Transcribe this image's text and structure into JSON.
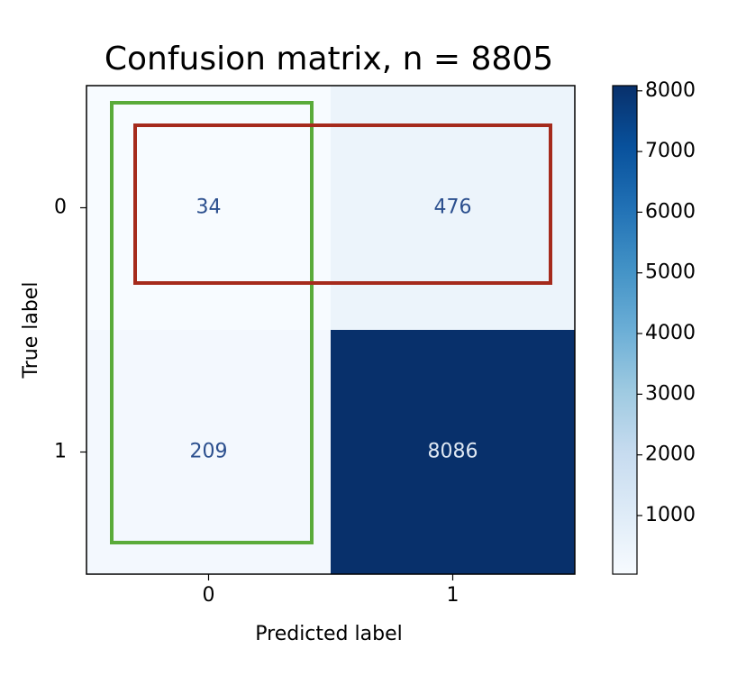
{
  "chart_data": {
    "type": "heatmap",
    "title": "Confusion matrix, n = 8805",
    "x_label": "Predicted label",
    "y_label": "True label",
    "categories": [
      "0",
      "1"
    ],
    "y_categories": [
      "0",
      "1"
    ],
    "values": [
      [
        34,
        476
      ],
      [
        209,
        8086
      ]
    ],
    "colormap": [
      "#f7fbff",
      "#deebf7",
      "#c6dbef",
      "#9ecae1",
      "#6baed6",
      "#4292c6",
      "#2171b5",
      "#08519c",
      "#08306b"
    ],
    "clim": [
      34,
      8086
    ],
    "cticks": [
      1000,
      2000,
      3000,
      4000,
      5000,
      6000,
      7000,
      8000
    ]
  }
}
